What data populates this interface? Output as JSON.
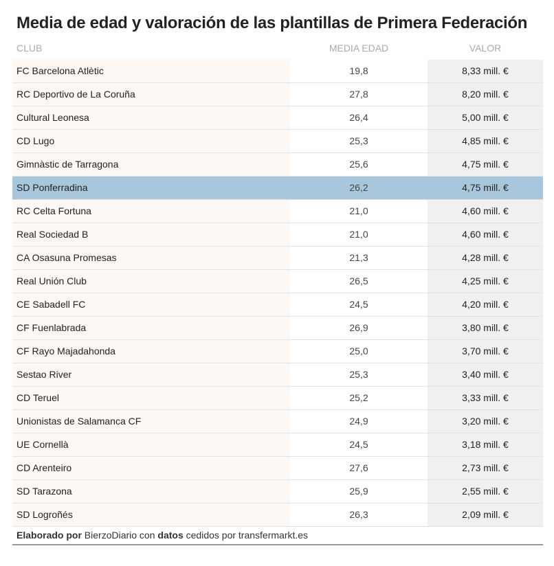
{
  "header": {
    "title": "Media de edad y valoración de las plantillas de Primera Federación"
  },
  "table": {
    "columns": [
      "CLUB",
      "MEDIA EDAD",
      "VALOR"
    ],
    "rows": [
      [
        "FC Barcelona Atlètic",
        "19,8",
        "8,33 mill. €"
      ],
      [
        "RC Deportivo de La Coruña",
        "27,8",
        "8,20 mill. €"
      ],
      [
        "Cultural Leonesa",
        "26,4",
        "5,00 mill. €"
      ],
      [
        "CD Lugo",
        "25,3",
        "4,85 mill. €"
      ],
      [
        "Gimnàstic de Tarragona",
        "25,6",
        "4,75 mill. €"
      ],
      [
        "SD Ponferradina",
        "26,2",
        "4,75 mill. €"
      ],
      [
        "RC Celta Fortuna",
        "21,0",
        "4,60 mill. €"
      ],
      [
        "Real Sociedad B",
        "21,0",
        "4,60 mill. €"
      ],
      [
        "CA Osasuna Promesas",
        "21,3",
        "4,28 mill. €"
      ],
      [
        "Real Unión Club",
        "26,5",
        "4,25 mill. €"
      ],
      [
        "CE Sabadell FC",
        "24,5",
        "4,20 mill. €"
      ],
      [
        "CF Fuenlabrada",
        "26,9",
        "3,80 mill. €"
      ],
      [
        "CF Rayo Majadahonda",
        "25,0",
        "3,70 mill. €"
      ],
      [
        "Sestao River",
        "25,3",
        "3,40 mill. €"
      ],
      [
        "CD Teruel",
        "25,2",
        "3,33 mill. €"
      ],
      [
        "Unionistas de Salamanca CF",
        "24,9",
        "3,20 mill. €"
      ],
      [
        "UE Cornellà",
        "24,5",
        "3,18 mill. €"
      ],
      [
        "CD Arenteiro",
        "27,6",
        "2,73 mill. €"
      ],
      [
        "SD Tarazona",
        "25,9",
        "2,55 mill. €"
      ],
      [
        "SD Logroñés",
        "26,3",
        "2,09 mill. €"
      ]
    ]
  },
  "footer": {
    "parts": [
      "Elaborado por",
      "BierzoDiario con",
      "datos",
      "cedidos por transfermarkt.es"
    ]
  }
}
